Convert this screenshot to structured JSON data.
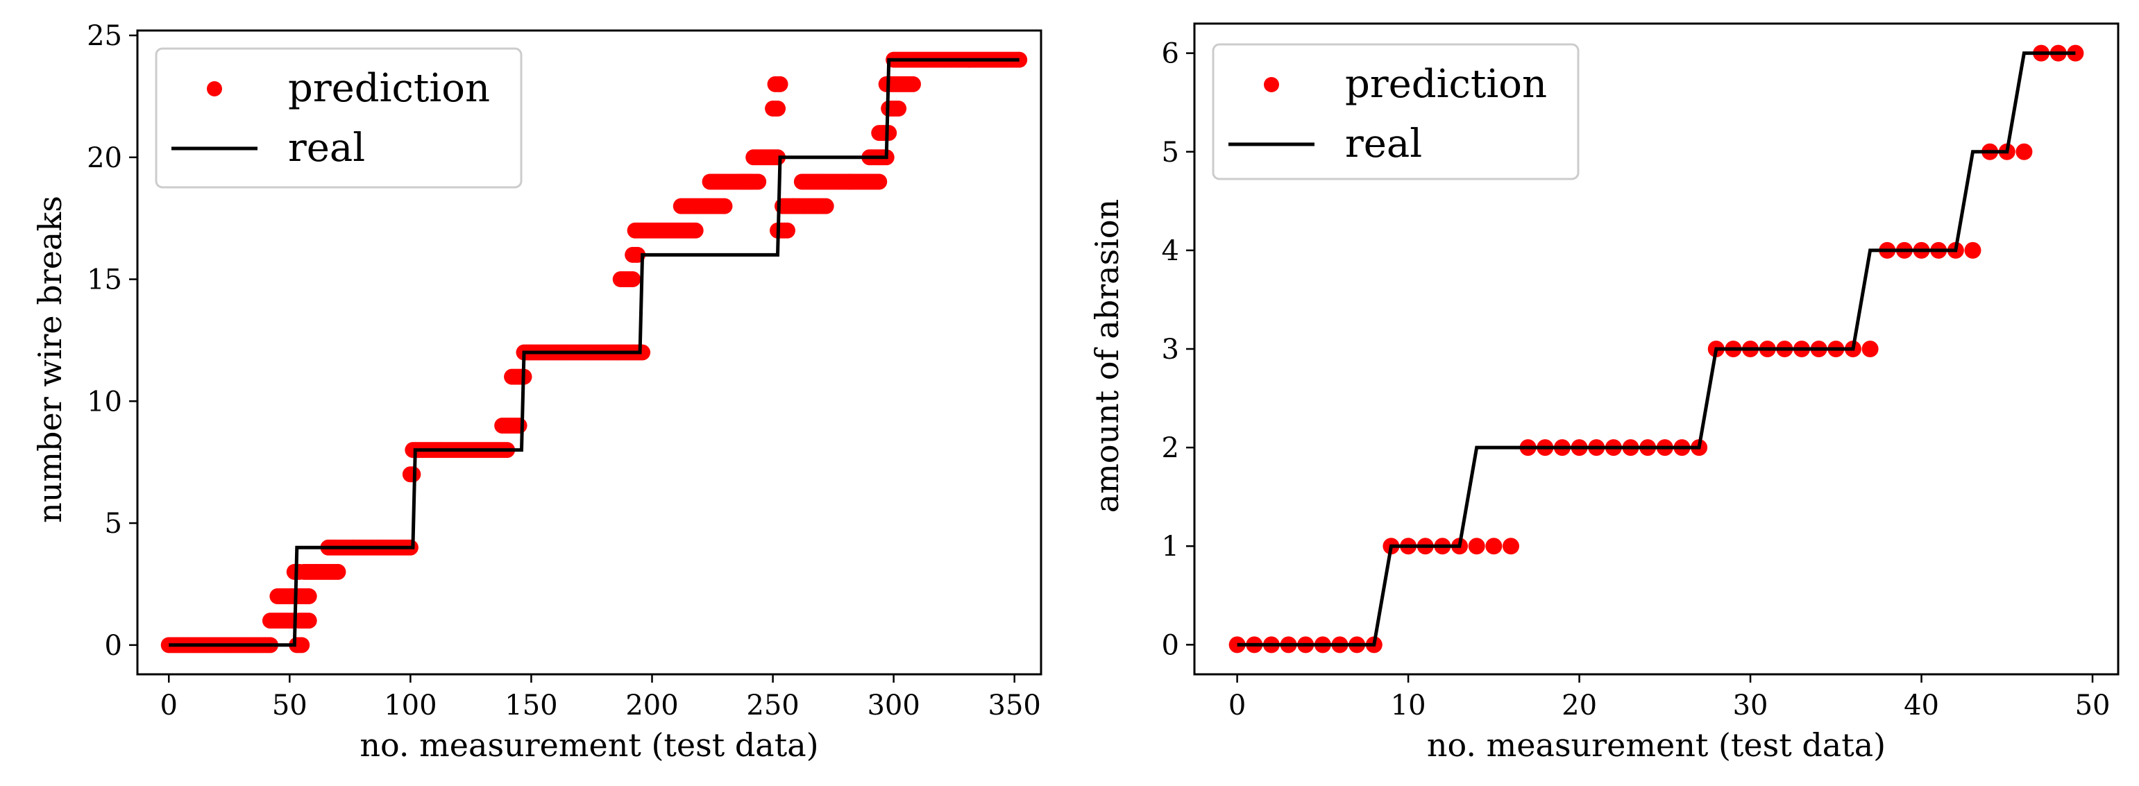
{
  "chart_data": [
    {
      "type": "scatter+line",
      "xlabel": "no. measurement (test data)",
      "ylabel": "number wire breaks",
      "xlim": [
        -13,
        361
      ],
      "ylim": [
        -1.2,
        25.2
      ],
      "xticks": [
        0,
        50,
        100,
        150,
        200,
        250,
        300,
        350
      ],
      "yticks": [
        0,
        5,
        10,
        15,
        20,
        25
      ],
      "grid": false,
      "legend_position": "upper-left",
      "legend": [
        {
          "label": "prediction",
          "style": "marker",
          "color": "#ff0000"
        },
        {
          "label": "real",
          "style": "line",
          "color": "#000000"
        }
      ],
      "series": [
        {
          "name": "real",
          "kind": "step-line",
          "color": "#000000",
          "points": [
            [
              0,
              0
            ],
            [
              52,
              0
            ],
            [
              53,
              4
            ],
            [
              101,
              4
            ],
            [
              102,
              8
            ],
            [
              146,
              8
            ],
            [
              147,
              12
            ],
            [
              195,
              12
            ],
            [
              196,
              16
            ],
            [
              252,
              16
            ],
            [
              253,
              20
            ],
            [
              297,
              20
            ],
            [
              298,
              24
            ],
            [
              352,
              24
            ]
          ]
        },
        {
          "name": "prediction",
          "kind": "markers",
          "color": "#ff0000",
          "runs": [
            {
              "from": 0,
              "to": 42,
              "y": 0
            },
            {
              "from": 42,
              "to": 52,
              "y": 1
            },
            {
              "from": 45,
              "to": 58,
              "y": 2
            },
            {
              "from": 52,
              "to": 54,
              "y": 3
            },
            {
              "from": 53,
              "to": 55,
              "y": 0
            },
            {
              "from": 54,
              "to": 58,
              "y": 1
            },
            {
              "from": 56,
              "to": 70,
              "y": 3
            },
            {
              "from": 66,
              "to": 100,
              "y": 4
            },
            {
              "from": 100,
              "to": 101,
              "y": 7
            },
            {
              "from": 101,
              "to": 140,
              "y": 8
            },
            {
              "from": 138,
              "to": 145,
              "y": 9
            },
            {
              "from": 142,
              "to": 147,
              "y": 11
            },
            {
              "from": 147,
              "to": 196,
              "y": 12
            },
            {
              "from": 187,
              "to": 192,
              "y": 15
            },
            {
              "from": 192,
              "to": 194,
              "y": 16
            },
            {
              "from": 193,
              "to": 218,
              "y": 17
            },
            {
              "from": 212,
              "to": 230,
              "y": 18
            },
            {
              "from": 224,
              "to": 244,
              "y": 19
            },
            {
              "from": 237,
              "to": 241,
              "y": 19
            },
            {
              "from": 242,
              "to": 252,
              "y": 20
            },
            {
              "from": 250,
              "to": 252,
              "y": 22
            },
            {
              "from": 251,
              "to": 253,
              "y": 23
            },
            {
              "from": 252,
              "to": 256,
              "y": 17
            },
            {
              "from": 254,
              "to": 272,
              "y": 18
            },
            {
              "from": 262,
              "to": 282,
              "y": 19
            },
            {
              "from": 282,
              "to": 294,
              "y": 19
            },
            {
              "from": 290,
              "to": 297,
              "y": 20
            },
            {
              "from": 294,
              "to": 298,
              "y": 21
            },
            {
              "from": 297,
              "to": 308,
              "y": 23
            },
            {
              "from": 298,
              "to": 302,
              "y": 22
            },
            {
              "from": 300,
              "to": 352,
              "y": 24
            }
          ]
        }
      ]
    },
    {
      "type": "scatter+line",
      "xlabel": "no. measurement (test data)",
      "ylabel": "amount of abrasion",
      "xlim": [
        -2.5,
        51.5
      ],
      "ylim": [
        -0.3,
        6.3
      ],
      "xticks": [
        0,
        10,
        20,
        30,
        40,
        50
      ],
      "yticks": [
        0,
        1,
        2,
        3,
        4,
        5,
        6
      ],
      "grid": false,
      "legend_position": "upper-left",
      "legend": [
        {
          "label": "prediction",
          "style": "marker",
          "color": "#ff0000"
        },
        {
          "label": "real",
          "style": "line",
          "color": "#000000"
        }
      ],
      "series": [
        {
          "name": "real",
          "kind": "line",
          "color": "#000000",
          "x": [
            0,
            1,
            2,
            3,
            4,
            5,
            6,
            7,
            8,
            9,
            10,
            11,
            12,
            13,
            14,
            15,
            16,
            17,
            18,
            19,
            20,
            21,
            22,
            23,
            24,
            25,
            26,
            27,
            28,
            29,
            30,
            31,
            32,
            33,
            34,
            35,
            36,
            37,
            38,
            39,
            40,
            41,
            42,
            43,
            44,
            45,
            46,
            47,
            48,
            49
          ],
          "y": [
            0,
            0,
            0,
            0,
            0,
            0,
            0,
            0,
            0,
            1,
            1,
            1,
            1,
            1,
            2,
            2,
            2,
            2,
            2,
            2,
            2,
            2,
            2,
            2,
            2,
            2,
            2,
            2,
            3,
            3,
            3,
            3,
            3,
            3,
            3,
            3,
            3,
            4,
            4,
            4,
            4,
            4,
            4,
            5,
            5,
            5,
            6,
            6,
            6,
            6
          ]
        },
        {
          "name": "prediction",
          "kind": "markers",
          "color": "#ff0000",
          "x": [
            0,
            1,
            2,
            3,
            4,
            5,
            6,
            7,
            8,
            9,
            10,
            11,
            12,
            13,
            14,
            15,
            16,
            17,
            18,
            19,
            20,
            21,
            22,
            23,
            24,
            25,
            26,
            27,
            28,
            29,
            30,
            31,
            32,
            33,
            34,
            35,
            36,
            37,
            38,
            39,
            40,
            41,
            42,
            43,
            44,
            45,
            46,
            47,
            48,
            49
          ],
          "y": [
            0,
            0,
            0,
            0,
            0,
            0,
            0,
            0,
            0,
            1,
            1,
            1,
            1,
            1,
            1,
            1,
            1,
            2,
            2,
            2,
            2,
            2,
            2,
            2,
            2,
            2,
            2,
            2,
            3,
            3,
            3,
            3,
            3,
            3,
            3,
            3,
            3,
            3,
            4,
            4,
            4,
            4,
            4,
            4,
            5,
            5,
            5,
            6,
            6,
            6
          ]
        }
      ]
    }
  ]
}
